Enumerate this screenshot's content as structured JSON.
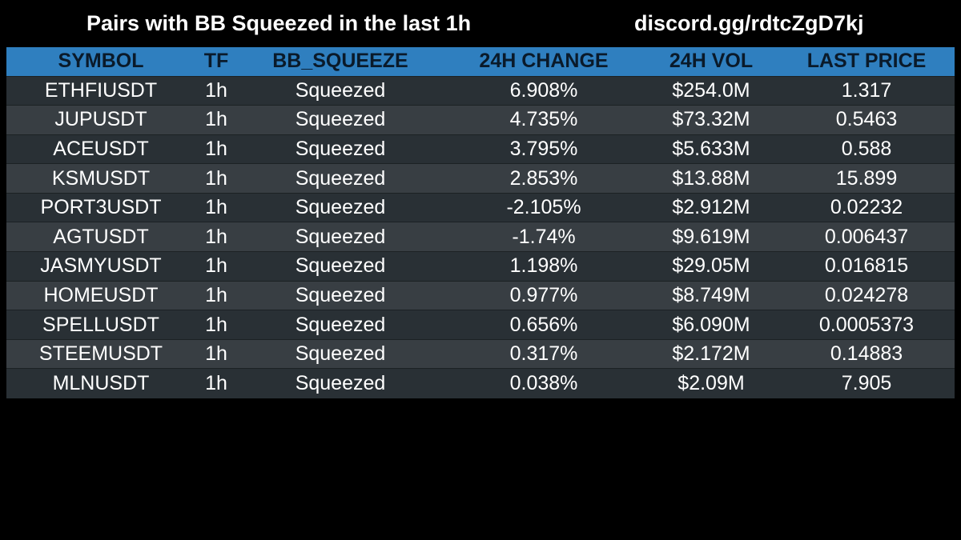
{
  "header": {
    "title": "Pairs with BB Squeezed in the last 1h",
    "link": "discord.gg/rdtcZgD7kj"
  },
  "colors": {
    "background": "#000000",
    "header_row": "#2f7fbf",
    "header_text": "#0a1a2a",
    "row_odd": "#293035",
    "row_even": "#383e43",
    "text": "#ffffff"
  },
  "table": {
    "columns": [
      "SYMBOL",
      "TF",
      "BB_SQUEEZE",
      "24H CHANGE",
      "24H VOL",
      "LAST PRICE"
    ],
    "rows": [
      [
        "ETHFIUSDT",
        "1h",
        "Squeezed",
        "6.908%",
        "$254.0M",
        "1.317"
      ],
      [
        "JUPUSDT",
        "1h",
        "Squeezed",
        "4.735%",
        "$73.32M",
        "0.5463"
      ],
      [
        "ACEUSDT",
        "1h",
        "Squeezed",
        "3.795%",
        "$5.633M",
        "0.588"
      ],
      [
        "KSMUSDT",
        "1h",
        "Squeezed",
        "2.853%",
        "$13.88M",
        "15.899"
      ],
      [
        "PORT3USDT",
        "1h",
        "Squeezed",
        "-2.105%",
        "$2.912M",
        "0.02232"
      ],
      [
        "AGTUSDT",
        "1h",
        "Squeezed",
        "-1.74%",
        "$9.619M",
        "0.006437"
      ],
      [
        "JASMYUSDT",
        "1h",
        "Squeezed",
        "1.198%",
        "$29.05M",
        "0.016815"
      ],
      [
        "HOMEUSDT",
        "1h",
        "Squeezed",
        "0.977%",
        "$8.749M",
        "0.024278"
      ],
      [
        "SPELLUSDT",
        "1h",
        "Squeezed",
        "0.656%",
        "$6.090M",
        "0.0005373"
      ],
      [
        "STEEMUSDT",
        "1h",
        "Squeezed",
        "0.317%",
        "$2.172M",
        "0.14883"
      ],
      [
        "MLNUSDT",
        "1h",
        "Squeezed",
        "0.038%",
        "$2.09M",
        "7.905"
      ]
    ]
  }
}
